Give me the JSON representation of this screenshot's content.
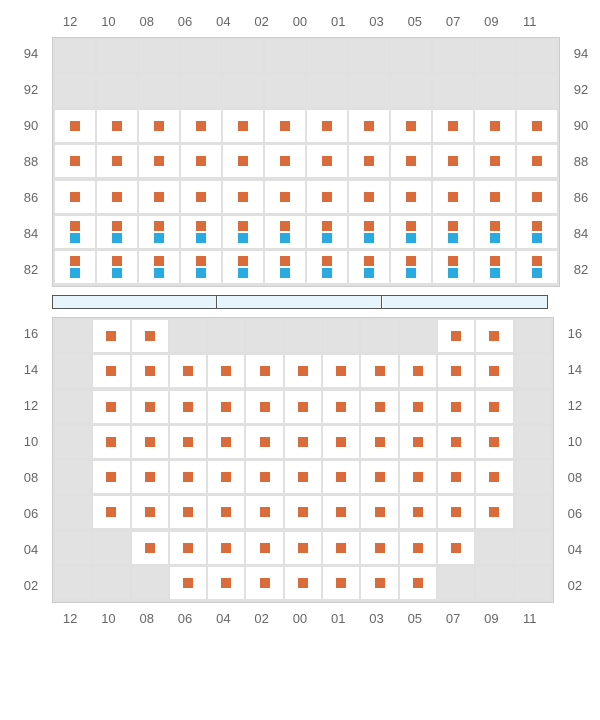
{
  "colors": {
    "seat_orange": "#d96c3a",
    "seat_blue": "#29abe2",
    "cell_white": "#ffffff",
    "cell_grey": "#e2e2e2",
    "stage_bg": "#e6f4fc",
    "label_color": "#666666"
  },
  "columns": [
    "12",
    "10",
    "08",
    "06",
    "04",
    "02",
    "00",
    "01",
    "03",
    "05",
    "07",
    "09",
    "11"
  ],
  "upper": {
    "row_labels": [
      "94",
      "",
      "92",
      "",
      "90",
      "",
      "88",
      "",
      "86",
      "",
      "84",
      "",
      "82"
    ],
    "full_labels": [
      "94",
      "92",
      "90",
      "88",
      "86",
      "84",
      "82"
    ],
    "rows": [
      {
        "bg": "grey",
        "seats": []
      },
      {
        "bg": "grey",
        "seats": []
      },
      {
        "bg": "white",
        "seats": [
          "o",
          "o",
          "o",
          "o",
          "o",
          "o",
          "o",
          "o",
          "o",
          "o",
          "o",
          "o"
        ]
      },
      {
        "bg": "white",
        "seats": [
          "o",
          "o",
          "o",
          "o",
          "o",
          "o",
          "o",
          "o",
          "o",
          "o",
          "o",
          "o"
        ]
      },
      {
        "bg": "white",
        "seats": [
          "o",
          "o",
          "o",
          "o",
          "o",
          "o",
          "o",
          "o",
          "o",
          "o",
          "o",
          "o"
        ]
      },
      {
        "bg": "white",
        "seats": [
          "ob",
          "ob",
          "ob",
          "ob",
          "ob",
          "ob",
          "ob",
          "ob",
          "ob",
          "ob",
          "ob",
          "ob"
        ]
      },
      {
        "bg": "white",
        "seats": [
          "ob",
          "ob",
          "ob",
          "ob",
          "ob",
          "ob",
          "ob",
          "ob",
          "ob",
          "ob",
          "ob",
          "ob"
        ]
      }
    ]
  },
  "lower": {
    "full_labels": [
      "16",
      "14",
      "12",
      "10",
      "08",
      "06",
      "04",
      "02"
    ],
    "rows": [
      {
        "cells": [
          {
            "t": "g"
          },
          {
            "t": "w",
            "s": "o"
          },
          {
            "t": "w",
            "s": "o"
          },
          {
            "t": "g"
          },
          {
            "t": "g"
          },
          {
            "t": "g"
          },
          {
            "t": "g"
          },
          {
            "t": "g"
          },
          {
            "t": "g"
          },
          {
            "t": "g"
          },
          {
            "t": "w",
            "s": "o"
          },
          {
            "t": "w",
            "s": "o"
          },
          {
            "t": "g"
          }
        ],
        "pad": true
      },
      {
        "cells": [
          {
            "t": "g"
          },
          {
            "t": "w",
            "s": "o"
          },
          {
            "t": "w",
            "s": "o"
          },
          {
            "t": "w",
            "s": "o"
          },
          {
            "t": "w",
            "s": "o"
          },
          {
            "t": "w",
            "s": "o"
          },
          {
            "t": "w",
            "s": "o"
          },
          {
            "t": "w",
            "s": "o"
          },
          {
            "t": "w",
            "s": "o"
          },
          {
            "t": "w",
            "s": "o"
          },
          {
            "t": "w",
            "s": "o"
          },
          {
            "t": "w",
            "s": "o"
          },
          {
            "t": "g"
          }
        ]
      },
      {
        "cells": [
          {
            "t": "g"
          },
          {
            "t": "w",
            "s": "o"
          },
          {
            "t": "w",
            "s": "o"
          },
          {
            "t": "w",
            "s": "o"
          },
          {
            "t": "w",
            "s": "o"
          },
          {
            "t": "w",
            "s": "o"
          },
          {
            "t": "w",
            "s": "o"
          },
          {
            "t": "w",
            "s": "o"
          },
          {
            "t": "w",
            "s": "o"
          },
          {
            "t": "w",
            "s": "o"
          },
          {
            "t": "w",
            "s": "o"
          },
          {
            "t": "w",
            "s": "o"
          },
          {
            "t": "g"
          }
        ]
      },
      {
        "cells": [
          {
            "t": "g"
          },
          {
            "t": "w",
            "s": "o"
          },
          {
            "t": "w",
            "s": "o"
          },
          {
            "t": "w",
            "s": "o"
          },
          {
            "t": "w",
            "s": "o"
          },
          {
            "t": "w",
            "s": "o"
          },
          {
            "t": "w",
            "s": "o"
          },
          {
            "t": "w",
            "s": "o"
          },
          {
            "t": "w",
            "s": "o"
          },
          {
            "t": "w",
            "s": "o"
          },
          {
            "t": "w",
            "s": "o"
          },
          {
            "t": "w",
            "s": "o"
          },
          {
            "t": "g"
          }
        ]
      },
      {
        "cells": [
          {
            "t": "g"
          },
          {
            "t": "w",
            "s": "o"
          },
          {
            "t": "w",
            "s": "o"
          },
          {
            "t": "w",
            "s": "o"
          },
          {
            "t": "w",
            "s": "o"
          },
          {
            "t": "w",
            "s": "o"
          },
          {
            "t": "w",
            "s": "o"
          },
          {
            "t": "w",
            "s": "o"
          },
          {
            "t": "w",
            "s": "o"
          },
          {
            "t": "w",
            "s": "o"
          },
          {
            "t": "w",
            "s": "o"
          },
          {
            "t": "w",
            "s": "o"
          },
          {
            "t": "g"
          }
        ]
      },
      {
        "cells": [
          {
            "t": "g"
          },
          {
            "t": "w",
            "s": "o"
          },
          {
            "t": "w",
            "s": "o"
          },
          {
            "t": "w",
            "s": "o"
          },
          {
            "t": "w",
            "s": "o"
          },
          {
            "t": "w",
            "s": "o"
          },
          {
            "t": "w",
            "s": "o"
          },
          {
            "t": "w",
            "s": "o"
          },
          {
            "t": "w",
            "s": "o"
          },
          {
            "t": "w",
            "s": "o"
          },
          {
            "t": "w",
            "s": "o"
          },
          {
            "t": "w",
            "s": "o"
          },
          {
            "t": "g"
          }
        ]
      },
      {
        "cells": [
          {
            "t": "g"
          },
          {
            "t": "g"
          },
          {
            "t": "w",
            "s": "o"
          },
          {
            "t": "w",
            "s": "o"
          },
          {
            "t": "w",
            "s": "o"
          },
          {
            "t": "w",
            "s": "o"
          },
          {
            "t": "w",
            "s": "o"
          },
          {
            "t": "w",
            "s": "o"
          },
          {
            "t": "w",
            "s": "o"
          },
          {
            "t": "w",
            "s": "o"
          },
          {
            "t": "w",
            "s": "o"
          },
          {
            "t": "g"
          },
          {
            "t": "g"
          }
        ]
      },
      {
        "cells": [
          {
            "t": "g"
          },
          {
            "t": "g"
          },
          {
            "t": "g"
          },
          {
            "t": "w",
            "s": "o"
          },
          {
            "t": "w",
            "s": "o"
          },
          {
            "t": "w",
            "s": "o"
          },
          {
            "t": "w",
            "s": "o"
          },
          {
            "t": "w",
            "s": "o"
          },
          {
            "t": "w",
            "s": "o"
          },
          {
            "t": "w",
            "s": "o"
          },
          {
            "t": "g"
          },
          {
            "t": "g"
          },
          {
            "t": "g"
          }
        ]
      }
    ]
  }
}
